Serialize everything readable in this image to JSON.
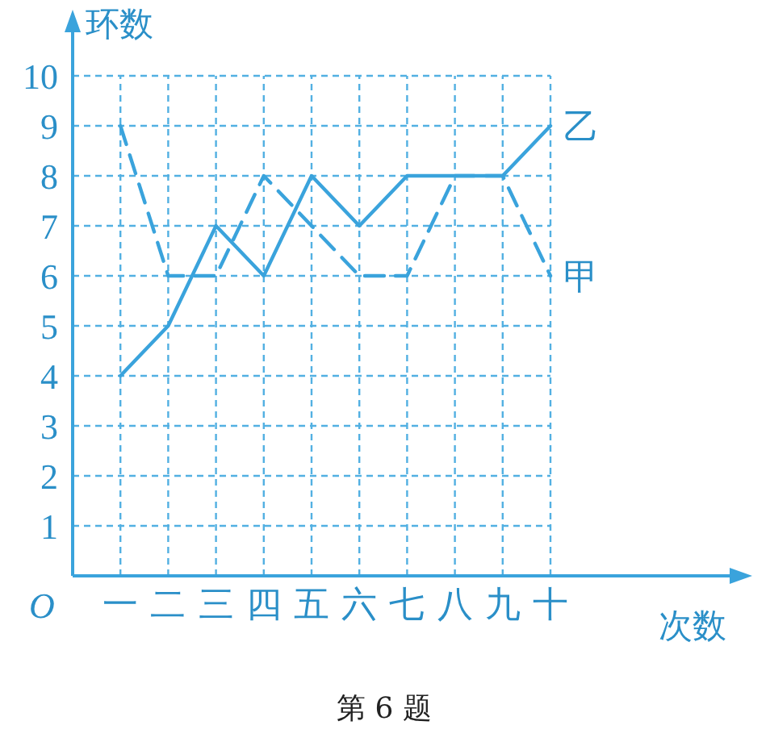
{
  "chart_data": {
    "type": "line",
    "xlabel": "次数",
    "ylabel": "环数",
    "annotations": [
      "O",
      "第 6 题"
    ],
    "categories": [
      "一",
      "二",
      "三",
      "四",
      "五",
      "六",
      "七",
      "八",
      "九",
      "十"
    ],
    "series": [
      {
        "name": "甲",
        "color": "#3aa3dc",
        "line_style": "dashed",
        "values": [
          9,
          6,
          6,
          8,
          7,
          6,
          6,
          8,
          8,
          6
        ]
      },
      {
        "name": "乙",
        "color": "#3aa3dc",
        "line_style": "solid",
        "values": [
          4,
          5,
          7,
          6,
          8,
          7,
          8,
          8,
          8,
          9
        ]
      }
    ],
    "ylim": [
      0,
      10
    ],
    "yticks": [
      1,
      2,
      3,
      4,
      5,
      6,
      7,
      8,
      9,
      10
    ],
    "grid": true,
    "marker": "none"
  }
}
